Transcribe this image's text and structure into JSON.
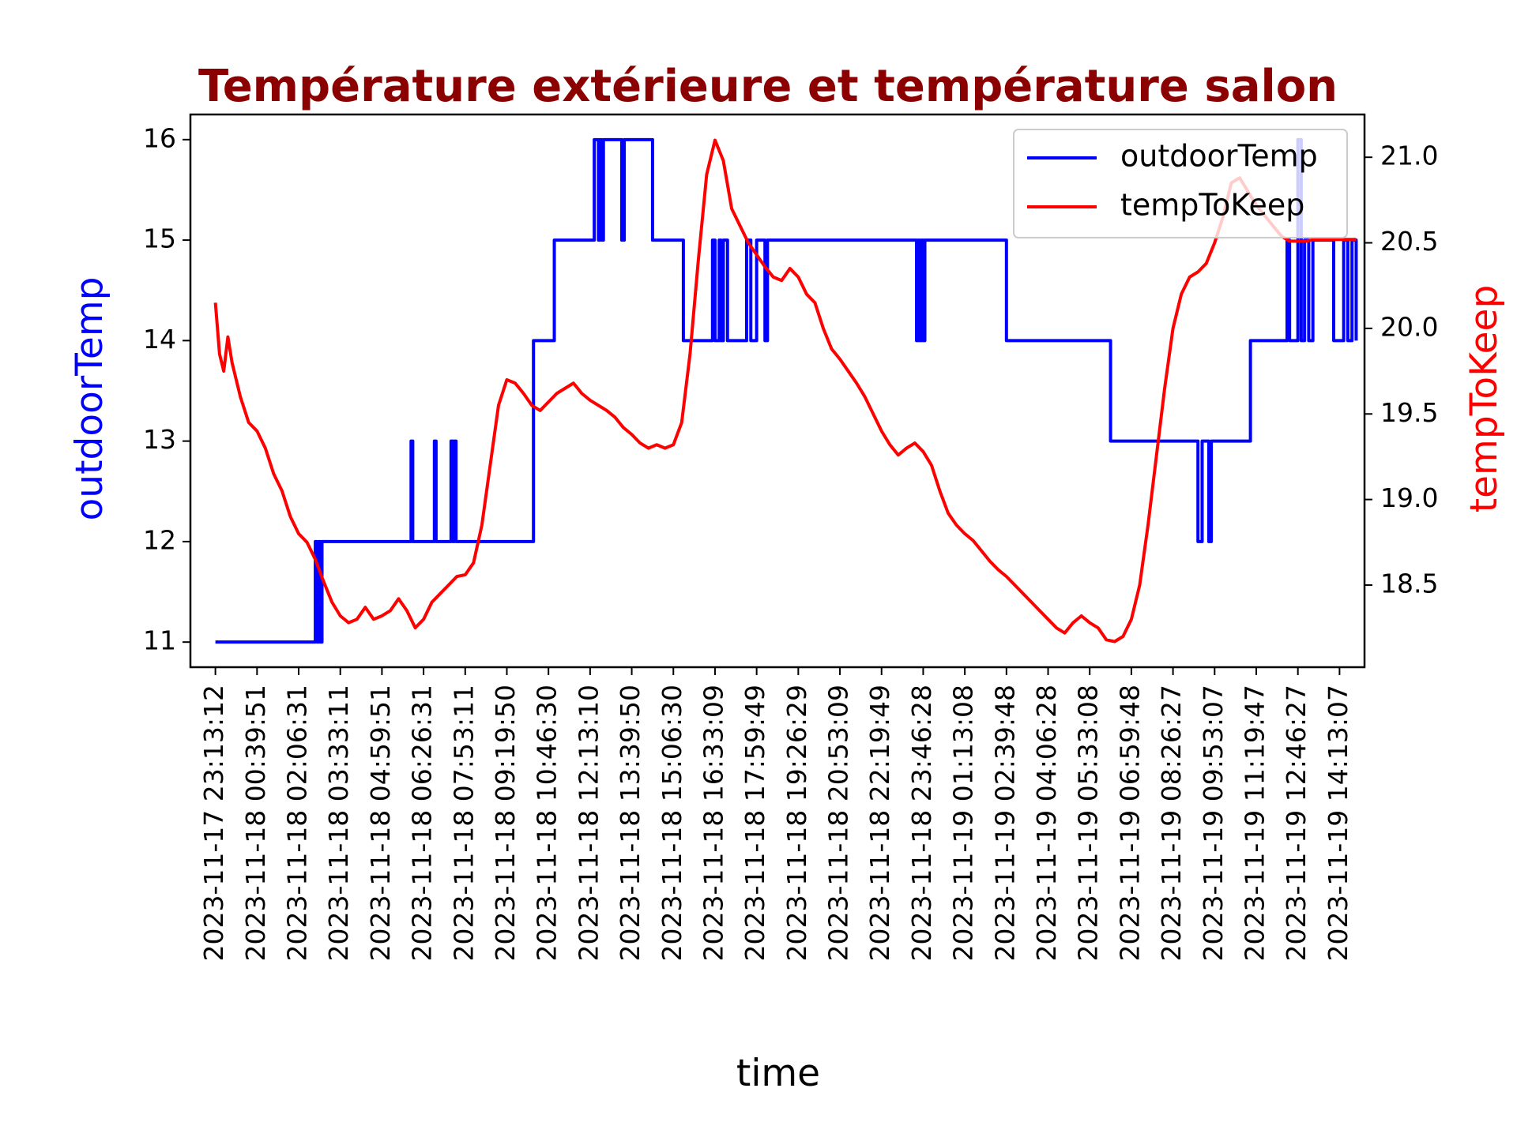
{
  "chart_data": {
    "type": "line",
    "title": "Température extérieure et température salon",
    "xlabel": "time",
    "ylabel_left": "outdoorTemp",
    "ylabel_right": "tempToKeep",
    "ylim_left": [
      10.75,
      16.25
    ],
    "ylim_right": [
      18.02,
      21.25
    ],
    "yticks_left": [
      11,
      12,
      13,
      14,
      15,
      16
    ],
    "yticks_right": [
      18.5,
      19.0,
      19.5,
      20.0,
      20.5,
      21.0
    ],
    "xlim": [
      -3,
      138
    ],
    "legend_position": "top-right",
    "categories": [
      "2023-11-17 23:13:12",
      "2023-11-18 00:39:51",
      "2023-11-18 02:06:31",
      "2023-11-18 03:33:11",
      "2023-11-18 04:59:51",
      "2023-11-18 06:26:31",
      "2023-11-18 07:53:11",
      "2023-11-18 09:19:50",
      "2023-11-18 10:46:30",
      "2023-11-18 12:13:10",
      "2023-11-18 13:39:50",
      "2023-11-18 15:06:30",
      "2023-11-18 16:33:09",
      "2023-11-18 17:59:49",
      "2023-11-18 19:26:29",
      "2023-11-18 20:53:09",
      "2023-11-18 22:19:49",
      "2023-11-18 23:46:28",
      "2023-11-19 01:13:08",
      "2023-11-19 02:39:48",
      "2023-11-19 04:06:28",
      "2023-11-19 05:33:08",
      "2023-11-19 06:59:48",
      "2023-11-19 08:26:27",
      "2023-11-19 09:53:07",
      "2023-11-19 11:19:47",
      "2023-11-19 12:46:27",
      "2023-11-19 14:13:07"
    ],
    "category_step": 5,
    "series": [
      {
        "name": "outdoorTemp",
        "axis": "left",
        "color": "#0000ff",
        "step": true,
        "x": [
          0,
          12,
          12.2,
          12.4,
          12.6,
          12.8,
          23.5,
          23.7,
          26.3,
          26.5,
          28.3,
          28.5,
          28.7,
          28.9,
          38.2,
          40.7,
          45.5,
          46.0,
          46.2,
          46.4,
          46.6,
          48.8,
          49.1,
          52.5,
          56.2,
          59.7,
          60.0,
          60.5,
          60.7,
          61.0,
          61.5,
          63.8,
          64.3,
          65.0,
          66.0,
          66.3,
          70.2,
          70.5,
          84.2,
          84.4,
          84.6,
          84.8,
          85.0,
          85.2,
          95.0,
          107.5,
          118.0,
          118.5,
          119.3,
          119.6,
          124.3,
          128.7,
          129.0,
          130.0,
          130.4,
          130.8,
          131.3,
          131.8,
          134.3,
          135.5,
          136.0,
          136.5,
          137.0
        ],
        "values": [
          11,
          12,
          11,
          12,
          11,
          12,
          13,
          12,
          13,
          12,
          13,
          12,
          13,
          12,
          14,
          15,
          16,
          15,
          16,
          15,
          16,
          15,
          16,
          15,
          14,
          15,
          14,
          15,
          14,
          15,
          14,
          15,
          14,
          15,
          14,
          15,
          15,
          15,
          14,
          15,
          14,
          15,
          14,
          15,
          14,
          13,
          12,
          13,
          12,
          13,
          14,
          15,
          14,
          16,
          14,
          15,
          14,
          15,
          14,
          15,
          14,
          15,
          14
        ]
      },
      {
        "name": "tempToKeep",
        "axis": "right",
        "color": "#ff0000",
        "x": [
          0,
          0.5,
          1,
          1.5,
          2,
          2.5,
          3,
          4,
          5,
          6,
          7,
          8,
          9,
          10,
          11,
          12,
          13,
          14,
          15,
          16,
          17,
          18,
          19,
          20,
          21,
          22,
          23,
          24,
          25,
          26,
          27,
          28,
          29,
          30,
          31,
          32,
          33,
          34,
          35,
          36,
          37,
          38,
          39,
          40,
          41,
          42,
          43,
          44,
          45,
          46,
          47,
          48,
          49,
          50,
          51,
          52,
          53,
          54,
          55,
          56,
          57,
          58,
          59,
          60,
          61,
          62,
          63,
          64,
          65,
          66,
          67,
          68,
          69,
          70,
          71,
          72,
          73,
          74,
          75,
          76,
          77,
          78,
          79,
          80,
          81,
          82,
          83,
          84,
          85,
          86,
          87,
          88,
          89,
          90,
          91,
          92,
          93,
          94,
          95,
          96,
          97,
          98,
          99,
          100,
          101,
          102,
          103,
          104,
          105,
          106,
          107,
          108,
          109,
          110,
          111,
          112,
          113,
          114,
          115,
          116,
          117,
          118,
          119,
          120,
          121,
          122,
          123,
          124,
          125,
          126,
          127,
          128,
          129,
          130,
          131,
          132,
          133,
          134,
          135,
          136,
          137
        ],
        "values": [
          20.15,
          19.85,
          19.75,
          19.95,
          19.8,
          19.7,
          19.6,
          19.45,
          19.4,
          19.3,
          19.15,
          19.05,
          18.9,
          18.8,
          18.75,
          18.65,
          18.52,
          18.4,
          18.32,
          18.28,
          18.3,
          18.37,
          18.3,
          18.32,
          18.35,
          18.42,
          18.35,
          18.25,
          18.3,
          18.4,
          18.45,
          18.5,
          18.55,
          18.56,
          18.63,
          18.85,
          19.2,
          19.55,
          19.7,
          19.68,
          19.62,
          19.55,
          19.52,
          19.57,
          19.62,
          19.65,
          19.68,
          19.62,
          19.58,
          19.55,
          19.52,
          19.48,
          19.42,
          19.38,
          19.33,
          19.3,
          19.32,
          19.3,
          19.32,
          19.45,
          19.85,
          20.4,
          20.9,
          21.1,
          20.98,
          20.7,
          20.6,
          20.5,
          20.43,
          20.36,
          20.3,
          20.28,
          20.35,
          20.3,
          20.2,
          20.15,
          20.0,
          19.88,
          19.82,
          19.75,
          19.68,
          19.6,
          19.5,
          19.4,
          19.32,
          19.26,
          19.3,
          19.33,
          19.28,
          19.2,
          19.05,
          18.92,
          18.85,
          18.8,
          18.76,
          18.7,
          18.64,
          18.59,
          18.55,
          18.5,
          18.45,
          18.4,
          18.35,
          18.3,
          18.25,
          18.22,
          18.28,
          18.32,
          18.28,
          18.25,
          18.18,
          18.17,
          18.2,
          18.3,
          18.5,
          18.85,
          19.25,
          19.65,
          20.0,
          20.2,
          20.3,
          20.33,
          20.38,
          20.5,
          20.65,
          20.85,
          20.88,
          20.8,
          20.72,
          20.66,
          20.6,
          20.54,
          20.51,
          20.51,
          20.51,
          20.52,
          20.52,
          20.52,
          20.52,
          20.52,
          20.52
        ]
      }
    ]
  }
}
